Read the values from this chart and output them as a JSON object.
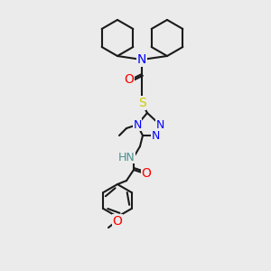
{
  "bg_color": "#ebebeb",
  "bond_color": "#1a1a1a",
  "bond_width": 1.5,
  "atom_colors": {
    "N": "#0000ff",
    "O": "#ff0000",
    "S": "#cccc00",
    "H": "#4a9090",
    "C": "#1a1a1a"
  },
  "font_size": 9
}
